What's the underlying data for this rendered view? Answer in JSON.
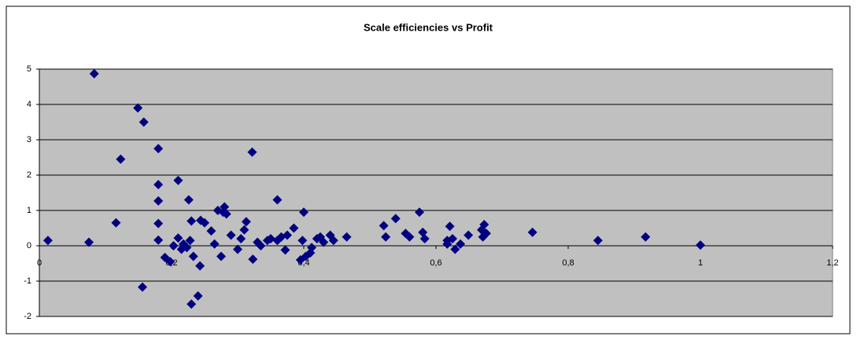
{
  "chart_data": {
    "type": "scatter",
    "title": "Scale efficiencies vs Profit",
    "x": [
      0.013,
      0.075,
      0.083,
      0.116,
      0.123,
      0.149,
      0.156,
      0.158,
      0.18,
      0.18,
      0.18,
      0.18,
      0.18,
      0.19,
      0.198,
      0.203,
      0.21,
      0.21,
      0.215,
      0.218,
      0.223,
      0.226,
      0.228,
      0.23,
      0.23,
      0.233,
      0.24,
      0.243,
      0.244,
      0.25,
      0.26,
      0.265,
      0.27,
      0.275,
      0.278,
      0.28,
      0.283,
      0.29,
      0.3,
      0.305,
      0.31,
      0.313,
      0.322,
      0.323,
      0.33,
      0.335,
      0.345,
      0.35,
      0.36,
      0.36,
      0.366,
      0.372,
      0.375,
      0.385,
      0.395,
      0.398,
      0.4,
      0.403,
      0.41,
      0.412,
      0.42,
      0.425,
      0.43,
      0.44,
      0.445,
      0.465,
      0.521,
      0.524,
      0.539,
      0.554,
      0.56,
      0.575,
      0.58,
      0.583,
      0.617,
      0.617,
      0.621,
      0.625,
      0.629,
      0.637,
      0.649,
      0.669,
      0.671,
      0.673,
      0.676,
      0.746,
      0.845,
      0.917,
      1.0
    ],
    "values": [
      0.15,
      0.1,
      4.87,
      0.65,
      2.45,
      3.9,
      -1.17,
      3.5,
      2.75,
      1.73,
      1.27,
      0.63,
      0.16,
      -0.33,
      -0.45,
      0.0,
      0.22,
      1.85,
      -0.1,
      0.05,
      -0.05,
      1.3,
      0.15,
      0.7,
      -1.65,
      -0.3,
      -1.42,
      -0.57,
      0.72,
      0.65,
      0.42,
      0.05,
      1.0,
      -0.3,
      0.95,
      1.1,
      0.9,
      0.3,
      -0.1,
      0.2,
      0.45,
      0.68,
      2.65,
      -0.38,
      0.1,
      0.0,
      0.15,
      0.2,
      1.3,
      0.15,
      0.25,
      -0.12,
      0.3,
      0.5,
      -0.4,
      0.15,
      0.95,
      -0.3,
      -0.2,
      -0.05,
      0.2,
      0.25,
      0.1,
      0.3,
      0.15,
      0.25,
      0.57,
      0.25,
      0.77,
      0.35,
      0.25,
      0.95,
      0.38,
      0.2,
      0.15,
      0.05,
      0.55,
      0.2,
      -0.1,
      0.05,
      0.3,
      0.45,
      0.25,
      0.6,
      0.35,
      0.38,
      0.15,
      0.25,
      0.02
    ],
    "color": "#000080",
    "xlim": [
      0,
      1.2
    ],
    "xticks": [
      0,
      {
        "value": 0.2,
        "label": "0,2"
      },
      {
        "value": 0.4,
        "label": "0,4"
      },
      {
        "value": 0.6,
        "label": "0,6"
      },
      {
        "value": 0.8,
        "label": "0,8"
      },
      1,
      {
        "value": 1.2,
        "label": "1,2"
      }
    ],
    "ylim": [
      -2,
      5
    ],
    "yticks": [
      -2,
      -1,
      0,
      1,
      2,
      3,
      4,
      5
    ],
    "grid": true,
    "background": "#c0c0c0"
  }
}
